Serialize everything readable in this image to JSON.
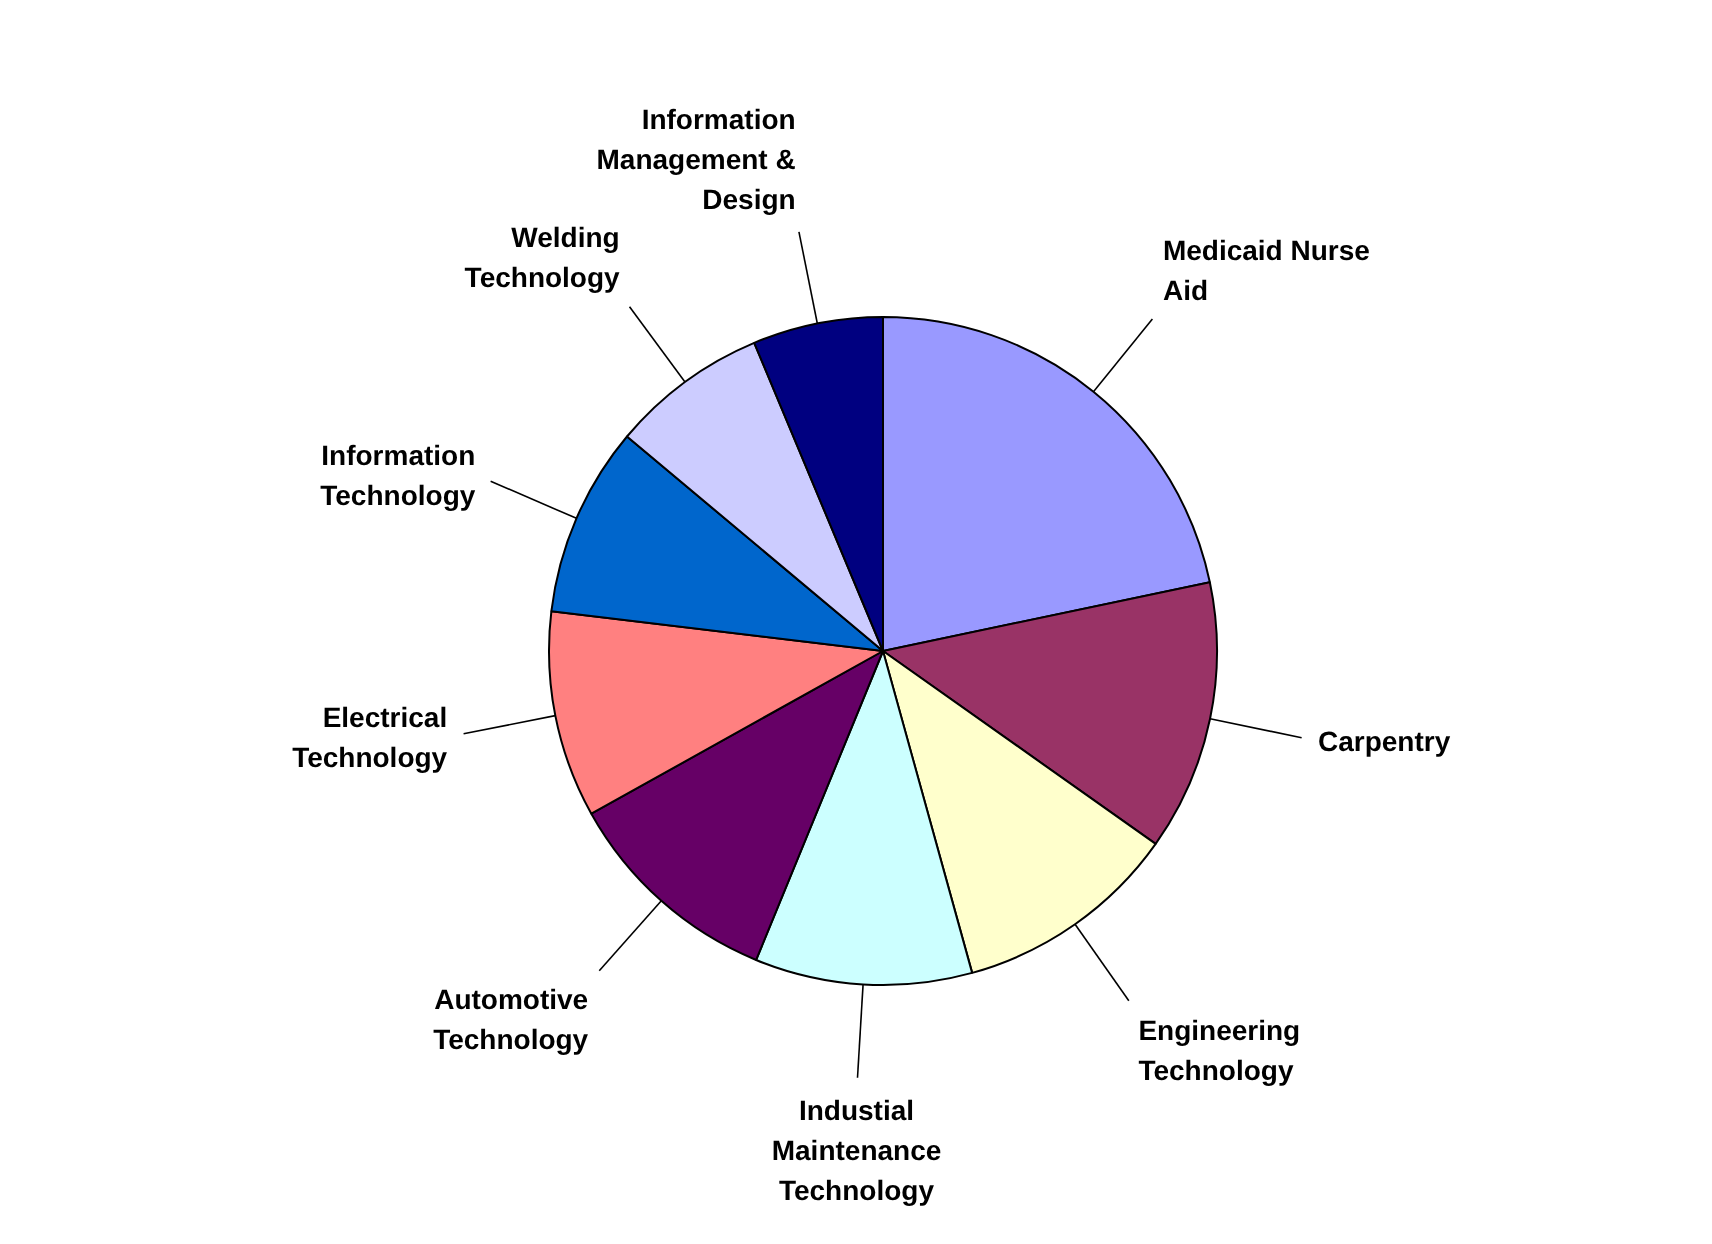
{
  "chart_data": {
    "type": "pie",
    "categories": [
      "Medicaid Nurse Aid",
      "Carpentry",
      "Engineering Technology",
      "Industial Maintenance Technology",
      "Automotive Technology",
      "Electrical Technology",
      "Information Technology",
      "Welding Technology",
      "Information Management & Design"
    ],
    "values": [
      21.7,
      13.1,
      10.9,
      10.5,
      10.7,
      10.0,
      9.2,
      7.6,
      6.3
    ],
    "colors": [
      "#9999ff",
      "#993366",
      "#ffffcc",
      "#ccffff",
      "#660066",
      "#ff8080",
      "#0066cc",
      "#ccccff",
      "#000080"
    ]
  }
}
